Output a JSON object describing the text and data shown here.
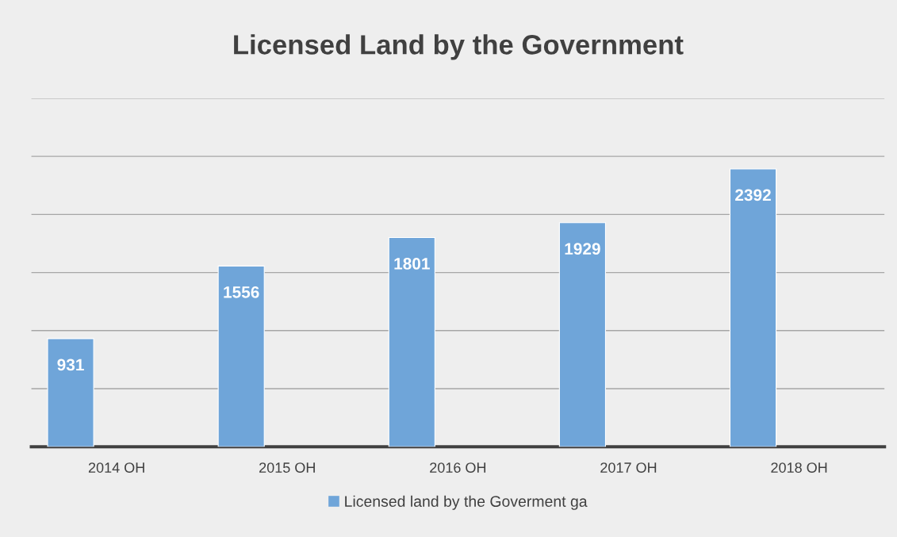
{
  "chart_data": {
    "type": "bar",
    "title": "Licensed Land by the Government",
    "categories": [
      "2014 OH",
      "2015 OH",
      "2016 OH",
      "2017 OH",
      "2018 OH"
    ],
    "series": [
      {
        "name": "Licensed land by the Goverment ga",
        "color": "#6fa5d9",
        "values": [
          931,
          1556,
          1801,
          1929,
          2392
        ]
      }
    ],
    "data_labels": true,
    "ylim": [
      0,
      3000
    ],
    "yticks": [
      {
        "value": 0,
        "label": null
      },
      {
        "value": 500,
        "label": null
      },
      {
        "value": 1000,
        "label": null
      },
      {
        "value": 1500,
        "label": null
      },
      {
        "value": 2000,
        "label": null
      },
      {
        "value": 2500,
        "label": null
      },
      {
        "value": 3000,
        "label": null
      }
    ],
    "tick_labels": "x",
    "grid": "y",
    "legend": "bottom"
  }
}
